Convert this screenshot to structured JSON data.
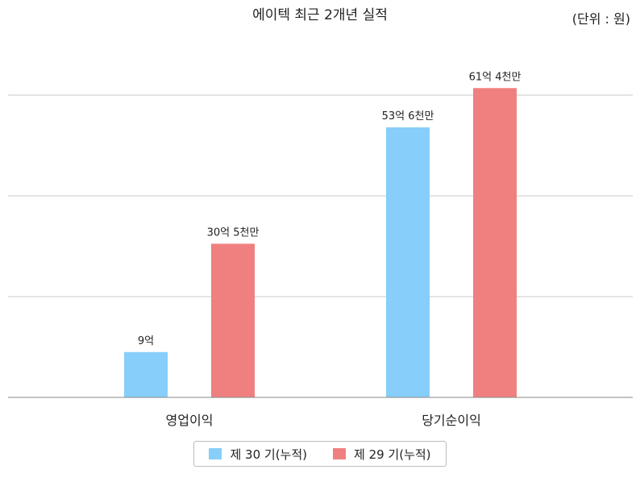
{
  "chart_data": {
    "type": "bar",
    "title": "에이텍 최근 2개년 실적",
    "unit_label": "(단위 : 원)",
    "categories": [
      "영업이익",
      "당기순이익"
    ],
    "series": [
      {
        "name": "제 30 기(누적)",
        "color": "#87CEFA",
        "values": [
          900000000,
          5360000000
        ],
        "labels": [
          "9억",
          "53억 6천만"
        ]
      },
      {
        "name": "제 29 기(누적)",
        "color": "#F08080",
        "values": [
          3050000000,
          6140000000
        ],
        "labels": [
          "30억 5천만",
          "61억 4천만"
        ]
      }
    ],
    "ylim": [
      0,
      6000000000
    ],
    "ygrid": [
      2000000000,
      4000000000,
      6000000000
    ],
    "grid": true,
    "legend_position": "bottom"
  }
}
